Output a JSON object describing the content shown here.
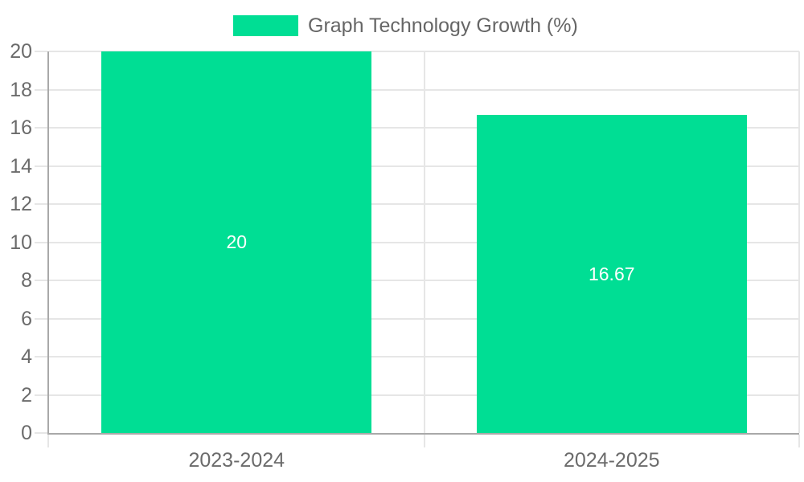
{
  "chart_data": {
    "type": "bar",
    "title": "Graph Technology Growth (%)",
    "legend": {
      "position": "top-center",
      "entries": [
        {
          "label": "Graph Technology Growth (%)",
          "color": "#00de94"
        }
      ]
    },
    "categories": [
      "2023-2024",
      "2024-2025"
    ],
    "values": [
      20,
      16.67
    ],
    "value_labels": [
      "20",
      "16.67"
    ],
    "ylim": [
      0,
      20
    ],
    "yticks": [
      0,
      2,
      4,
      6,
      8,
      10,
      12,
      14,
      16,
      18,
      20
    ],
    "grid": true,
    "xlabel": "",
    "ylabel": ""
  },
  "colors": {
    "bar": "#00de94",
    "grid": "#e6e6e6",
    "axis_border": "#a9a9a9",
    "tick_label": "#6b6b6b",
    "legend_text": "#666666",
    "value_label": "#ffffff",
    "background": "#ffffff"
  }
}
